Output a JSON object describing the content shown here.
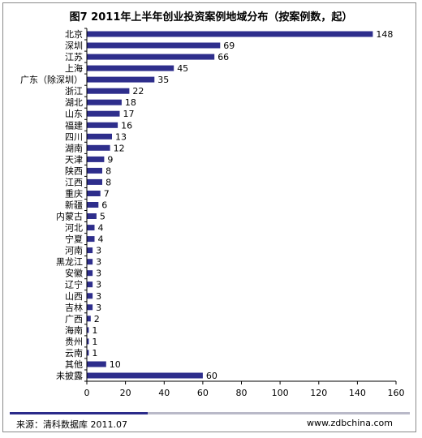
{
  "chart_data": {
    "type": "bar",
    "orientation": "horizontal",
    "title": "图7 2011年上半年创业投资案例地域分布（按案例数，起）",
    "categories": [
      "北京",
      "深圳",
      "江苏",
      "上海",
      "广东（除深圳）",
      "浙江",
      "湖北",
      "山东",
      "福建",
      "四川",
      "湖南",
      "天津",
      "陕西",
      "江西",
      "重庆",
      "新疆",
      "内蒙古",
      "河北",
      "宁夏",
      "河南",
      "黑龙江",
      "安徽",
      "辽宁",
      "山西",
      "吉林",
      "广西",
      "海南",
      "贵州",
      "云南",
      "其他",
      "未披露"
    ],
    "values": [
      148,
      69,
      66,
      45,
      35,
      22,
      18,
      17,
      16,
      13,
      12,
      9,
      8,
      8,
      7,
      6,
      5,
      4,
      4,
      3,
      3,
      3,
      3,
      3,
      3,
      2,
      1,
      1,
      1,
      10,
      60
    ],
    "xlim": [
      0,
      160
    ],
    "xticks": [
      0,
      20,
      40,
      60,
      80,
      100,
      120,
      140,
      160
    ],
    "bar_color": "#2e2e8c",
    "grid": false
  },
  "footer": {
    "source": "来源：清科数据库 2011.07",
    "website": "www.zdbchina.com"
  }
}
